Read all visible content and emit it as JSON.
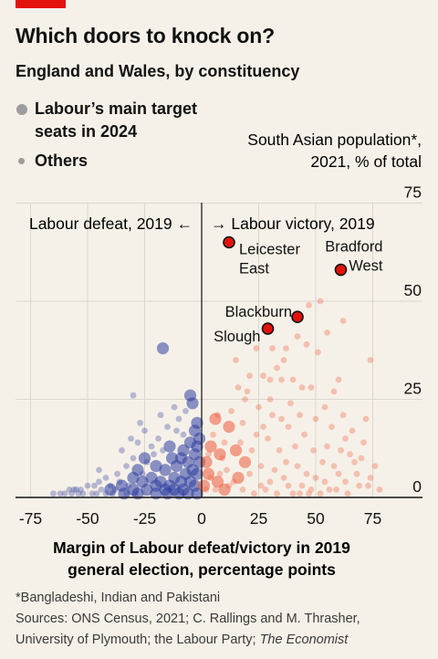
{
  "header": {
    "title": "Which doors to knock on?",
    "subtitle": "England and Wales, by constituency"
  },
  "legend": {
    "target_label_line1": "Labour’s main target",
    "target_label_line2": "seats in 2024",
    "others_label": "Others"
  },
  "colors": {
    "background": "#f6f1e8",
    "brand_red": "#e3120b",
    "defeat_blue": "#2e3ea0",
    "victory_red": "#ec5a3c",
    "highlight_red": "#e3120b",
    "legend_grey": "#9d9d9d"
  },
  "chart_data": {
    "type": "scatter",
    "title": "Which doors to knock on?",
    "subtitle": "England and Wales, by constituency",
    "xlabel_line1": "Margin of Labour defeat/victory in 2019",
    "xlabel_line2": "general election, percentage points",
    "ylabel_line1": "South Asian population*,",
    "ylabel_line2": "2021, % of total",
    "xlim": [
      -80,
      90
    ],
    "ylim": [
      0,
      75
    ],
    "xticks": [
      -75,
      -50,
      -25,
      0,
      25,
      50,
      75
    ],
    "xtick_labels": [
      "-75",
      "-50",
      "-25",
      "0",
      "25",
      "50",
      "75"
    ],
    "yticks": [
      0,
      25,
      50,
      75
    ],
    "ytick_labels": [
      "0",
      "25",
      "50",
      "75"
    ],
    "grid": true,
    "divider_annotations": {
      "left": "Labour defeat, 2019 ←",
      "right": "→ Labour victory, 2019"
    },
    "highlighted": [
      {
        "name_line1": "Leicester",
        "name_line2": "East",
        "x": 12,
        "y": 65
      },
      {
        "name_line1": "Bradford",
        "name_line2": "West",
        "x": 61,
        "y": 58
      },
      {
        "name_line1": "Blackburn",
        "name_line2": "",
        "x": 42,
        "y": 46
      },
      {
        "name_line1": "Slough",
        "name_line2": "",
        "x": 29,
        "y": 43
      }
    ],
    "series": [
      {
        "name": "Labour’s main target seats in 2024",
        "points": [
          [
            -17,
            38
          ],
          [
            -5,
            26
          ],
          [
            -4,
            24
          ],
          [
            -2,
            19
          ],
          [
            -3,
            17
          ],
          [
            -1,
            15
          ],
          [
            -5,
            14
          ],
          [
            -14,
            13
          ],
          [
            -2,
            13
          ],
          [
            -8,
            12
          ],
          [
            -3,
            11
          ],
          [
            -9,
            10
          ],
          [
            -13,
            10
          ],
          [
            -25,
            10
          ],
          [
            -6,
            9
          ],
          [
            -1,
            9
          ],
          [
            -20,
            8
          ],
          [
            -11,
            8
          ],
          [
            -4,
            7
          ],
          [
            -28,
            7
          ],
          [
            -16,
            7
          ],
          [
            -7,
            6
          ],
          [
            -2,
            6
          ],
          [
            -22,
            5
          ],
          [
            -12,
            5
          ],
          [
            -30,
            5
          ],
          [
            -18,
            4
          ],
          [
            -9,
            4
          ],
          [
            -5,
            4
          ],
          [
            -26,
            4
          ],
          [
            -14,
            3
          ],
          [
            -35,
            3
          ],
          [
            -3,
            3
          ],
          [
            -20,
            3
          ],
          [
            -8,
            2
          ],
          [
            -24,
            2
          ],
          [
            -30,
            2
          ],
          [
            -12,
            2
          ],
          [
            -16,
            2
          ],
          [
            -40,
            2
          ],
          [
            -6,
            1
          ],
          [
            -10,
            1
          ],
          [
            -20,
            1
          ],
          [
            -28,
            1
          ],
          [
            -34,
            1
          ],
          [
            -2,
            1
          ],
          [
            -15,
            1
          ],
          [
            4,
            13
          ],
          [
            2,
            9
          ],
          [
            3,
            6
          ],
          [
            7,
            4
          ],
          [
            1,
            3
          ],
          [
            10,
            2
          ],
          [
            19,
            9
          ],
          [
            16,
            5
          ],
          [
            6,
            20
          ],
          [
            12,
            18
          ],
          [
            8,
            11
          ],
          [
            15,
            12
          ]
        ]
      },
      {
        "name": "Others",
        "points": [
          [
            -10,
            20
          ],
          [
            -22,
            13
          ],
          [
            -19,
            15
          ],
          [
            -30,
            10
          ],
          [
            -33,
            8
          ],
          [
            -37,
            6
          ],
          [
            -42,
            5
          ],
          [
            -45,
            4
          ],
          [
            -50,
            3
          ],
          [
            -55,
            2
          ],
          [
            -60,
            1
          ],
          [
            -65,
            1
          ],
          [
            -48,
            1
          ],
          [
            -52,
            1
          ],
          [
            -58,
            2
          ],
          [
            -44,
            2
          ],
          [
            -38,
            2
          ],
          [
            -36,
            4
          ],
          [
            -40,
            3
          ],
          [
            -46,
            1
          ],
          [
            -54,
            1
          ],
          [
            -62,
            1
          ],
          [
            -56,
            2
          ],
          [
            -15,
            18
          ],
          [
            -25,
            17
          ],
          [
            -30,
            26
          ],
          [
            -12,
            23
          ],
          [
            -18,
            21
          ],
          [
            -8,
            16
          ],
          [
            -35,
            12
          ],
          [
            -28,
            14
          ],
          [
            -32,
            3
          ],
          [
            -26,
            6
          ],
          [
            -21,
            11
          ],
          [
            -24,
            9
          ],
          [
            -7,
            22
          ],
          [
            -42,
            1
          ],
          [
            -39,
            1
          ],
          [
            -29,
            1
          ],
          [
            -33,
            1
          ],
          [
            -47,
            3
          ],
          [
            -53,
            2
          ],
          [
            -57,
            1
          ],
          [
            -45,
            7
          ],
          [
            -27,
            19
          ],
          [
            -11,
            17
          ],
          [
            -17,
            12
          ],
          [
            -31,
            15
          ],
          [
            47,
            49
          ],
          [
            52,
            50
          ],
          [
            62,
            45
          ],
          [
            74,
            35
          ],
          [
            37,
            38
          ],
          [
            31,
            38
          ],
          [
            35,
            30
          ],
          [
            46,
            39
          ],
          [
            21,
            31
          ],
          [
            27,
            31
          ],
          [
            33,
            33
          ],
          [
            40,
            30
          ],
          [
            15,
            35
          ],
          [
            20,
            27
          ],
          [
            25,
            23
          ],
          [
            18,
            19
          ],
          [
            13,
            22
          ],
          [
            30,
            25
          ],
          [
            48,
            28
          ],
          [
            54,
            23
          ],
          [
            60,
            30
          ],
          [
            66,
            17
          ],
          [
            70,
            10
          ],
          [
            55,
            13
          ],
          [
            45,
            16
          ],
          [
            38,
            18
          ],
          [
            42,
            8
          ],
          [
            50,
            5
          ],
          [
            58,
            8
          ],
          [
            63,
            4
          ],
          [
            68,
            6
          ],
          [
            73,
            3
          ],
          [
            78,
            2
          ],
          [
            64,
            1
          ],
          [
            56,
            2
          ],
          [
            44,
            3
          ],
          [
            36,
            5
          ],
          [
            30,
            4
          ],
          [
            26,
            8
          ],
          [
            22,
            12
          ],
          [
            17,
            14
          ],
          [
            11,
            7
          ],
          [
            9,
            10
          ],
          [
            14,
            4
          ],
          [
            18,
            2
          ],
          [
            23,
            1
          ],
          [
            28,
            2
          ],
          [
            33,
            1
          ],
          [
            40,
            1
          ],
          [
            47,
            1
          ],
          [
            52,
            1
          ],
          [
            59,
            2
          ],
          [
            5,
            16
          ],
          [
            7,
            21
          ],
          [
            3,
            11
          ],
          [
            2,
            2
          ],
          [
            39,
            24
          ],
          [
            43,
            21
          ],
          [
            49,
            12
          ],
          [
            57,
            18
          ],
          [
            62,
            21
          ],
          [
            51,
            37
          ],
          [
            55,
            42
          ],
          [
            44,
            28
          ],
          [
            34,
            12
          ],
          [
            29,
            15
          ],
          [
            24,
            16
          ],
          [
            19,
            25
          ],
          [
            16,
            28
          ],
          [
            35,
            20
          ],
          [
            65,
            11
          ],
          [
            72,
            20
          ],
          [
            76,
            8
          ],
          [
            69,
            3
          ],
          [
            61,
            12
          ],
          [
            53,
            9
          ],
          [
            46,
            6
          ],
          [
            41,
            13
          ],
          [
            37,
            9
          ],
          [
            32,
            7
          ],
          [
            26,
            3
          ],
          [
            21,
            6
          ],
          [
            12,
            3
          ],
          [
            8,
            6
          ],
          [
            6,
            2
          ],
          [
            4,
            5
          ],
          [
            10,
            14
          ],
          [
            27,
            18
          ],
          [
            31,
            21
          ],
          [
            38,
            3
          ],
          [
            43,
            1
          ],
          [
            48,
            2
          ],
          [
            54,
            4
          ],
          [
            60,
            6
          ],
          [
            67,
            9
          ],
          [
            71,
            14
          ],
          [
            74,
            5
          ],
          [
            63,
            15
          ],
          [
            58,
            27
          ],
          [
            50,
            20
          ],
          [
            42,
            41
          ],
          [
            36,
            35
          ],
          [
            30,
            30
          ],
          [
            24,
            38
          ]
        ]
      }
    ]
  },
  "footnotes": {
    "line1": "*Bangladeshi, Indian and Pakistani",
    "line2": "Sources: ONS Census, 2021; C. Rallings and M. Thrasher,",
    "line3_plain": "University of Plymouth; the Labour Party; ",
    "line3_italic": "The Economist"
  }
}
